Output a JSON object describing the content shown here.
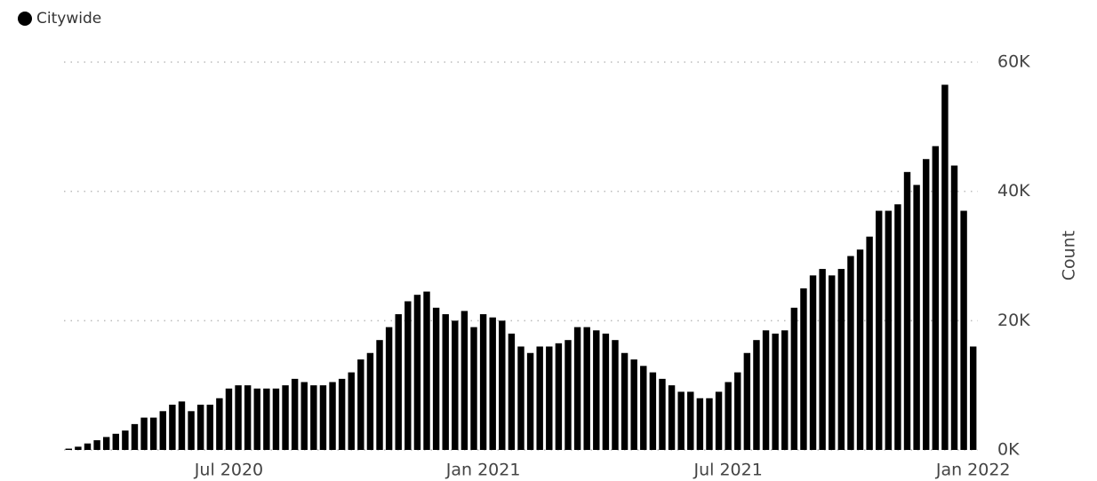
{
  "chart_data": {
    "type": "bar",
    "y_label": "Count",
    "categories": [
      null,
      null,
      null,
      null,
      null,
      null,
      null,
      null,
      null,
      null,
      null,
      null,
      null,
      null,
      null,
      null,
      null,
      "Jul 2020",
      null,
      null,
      null,
      null,
      null,
      null,
      null,
      null,
      null,
      null,
      null,
      null,
      null,
      null,
      null,
      null,
      null,
      null,
      null,
      null,
      null,
      null,
      null,
      null,
      null,
      null,
      "Jan 2021",
      null,
      null,
      null,
      null,
      null,
      null,
      null,
      null,
      null,
      null,
      null,
      null,
      null,
      null,
      null,
      null,
      null,
      null,
      null,
      null,
      null,
      null,
      null,
      null,
      null,
      "Jul 2021",
      null,
      null,
      null,
      null,
      null,
      null,
      null,
      null,
      null,
      null,
      null,
      null,
      null,
      null,
      null,
      null,
      null,
      null,
      null,
      null,
      null,
      null,
      null,
      null,
      null,
      "Jan 2022"
    ],
    "series": [
      {
        "name": "Citywide",
        "color": "#000000",
        "values": [
          200,
          500,
          1000,
          1500,
          2000,
          2500,
          3000,
          4000,
          5000,
          5000,
          6000,
          7000,
          7500,
          6000,
          7000,
          7000,
          8000,
          9500,
          10000,
          10000,
          9500,
          9500,
          9500,
          10000,
          11000,
          10500,
          10000,
          10000,
          10500,
          11000,
          12000,
          14000,
          15000,
          17000,
          19000,
          21000,
          23000,
          24000,
          24500,
          22000,
          21000,
          20000,
          21500,
          19000,
          21000,
          20500,
          20000,
          18000,
          16000,
          15000,
          16000,
          16000,
          16500,
          17000,
          19000,
          19000,
          18500,
          18000,
          17000,
          15000,
          14000,
          13000,
          12000,
          11000,
          10000,
          9000,
          9000,
          8000,
          8000,
          9000,
          10500,
          12000,
          15000,
          17000,
          18500,
          18000,
          18500,
          22000,
          25000,
          27000,
          28000,
          27000,
          28000,
          30000,
          31000,
          33000,
          37000,
          37000,
          38000,
          43000,
          41000,
          45000,
          47000,
          56500,
          44000,
          37000,
          16000
        ]
      }
    ],
    "ylim": [
      0,
      60000
    ],
    "yticks": [
      {
        "value": 0,
        "label": "0K"
      },
      {
        "value": 20000,
        "label": "20K"
      },
      {
        "value": 40000,
        "label": "40K"
      },
      {
        "value": 60000,
        "label": "60K"
      }
    ],
    "grid": true
  }
}
